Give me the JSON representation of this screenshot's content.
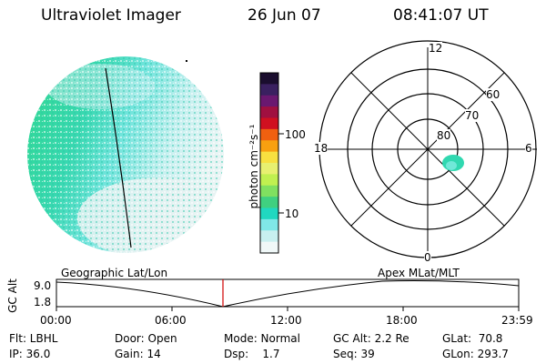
{
  "header": {
    "instrument": "Ultraviolet Imager",
    "date": "26 Jun 07",
    "time": "08:41:07 UT"
  },
  "colorbar": {
    "unit_label": "photon cm⁻²s⁻¹",
    "ticks": [
      "100",
      "10"
    ],
    "colors": [
      "#1a0d2e",
      "#3a2060",
      "#6a1870",
      "#a01040",
      "#d01020",
      "#f06010",
      "#f8a010",
      "#f8e040",
      "#e8f070",
      "#c0f050",
      "#80e060",
      "#40d080",
      "#20d8c0",
      "#80e8e8",
      "#c8f0f0",
      "#f0f8f8"
    ]
  },
  "polar_plot": {
    "hour_labels": [
      "12",
      "18",
      "6",
      "0"
    ],
    "lat_labels": [
      "60",
      "70",
      "80"
    ]
  },
  "timeline": {
    "y_label": "GC Alt",
    "y_ticks": [
      "9.0",
      "1.8"
    ],
    "left_label": "Geographic Lat/Lon",
    "right_label": "Apex MLat/MLT",
    "x_ticks": [
      "00:00",
      "06:00",
      "12:00",
      "18:00",
      "23:59"
    ],
    "current_marker_color": "#d00000"
  },
  "status": {
    "flt": "Flt: LBHL",
    "ip": "IP: 36.0",
    "door": "Door: Open",
    "gain": "Gain: 14",
    "mode": "Mode: Normal",
    "dsp": "Dsp:    1.7",
    "gc_alt": "GC Alt: 2.2 Re",
    "seq": "Seq: 39",
    "glat": "GLat:  70.8",
    "glon": "GLon: 293.7"
  }
}
